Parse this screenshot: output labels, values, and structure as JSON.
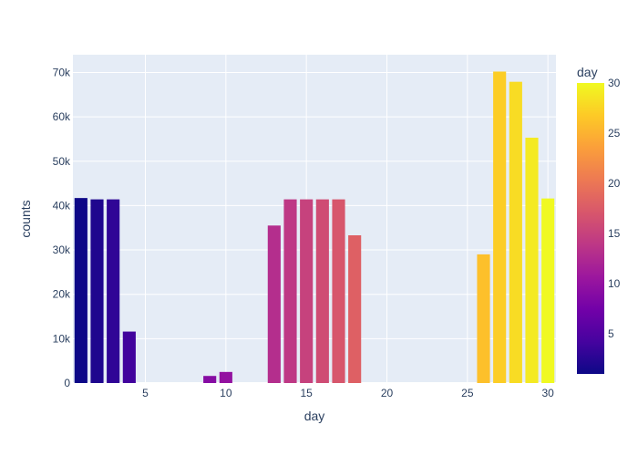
{
  "chart_data": {
    "type": "bar",
    "xlabel": "day",
    "ylabel": "counts",
    "xlim": [
      0.5,
      30.5
    ],
    "ylim": [
      0,
      74000
    ],
    "x_ticks": [
      5,
      10,
      15,
      20,
      25,
      30
    ],
    "y_ticks": [
      0,
      10000,
      20000,
      30000,
      40000,
      50000,
      60000,
      70000
    ],
    "y_tick_labels": [
      "0",
      "10k",
      "20k",
      "30k",
      "40k",
      "50k",
      "60k",
      "70k"
    ],
    "x": [
      1,
      2,
      3,
      4,
      9,
      10,
      13,
      14,
      15,
      16,
      17,
      18,
      26,
      27,
      28,
      29,
      30
    ],
    "values": [
      41700,
      41400,
      41400,
      11600,
      1600,
      2500,
      35500,
      41400,
      41400,
      41400,
      41400,
      33300,
      29000,
      70200,
      67900,
      55300,
      41600
    ],
    "color_by": "day",
    "colorscale": "plasma",
    "colorbar": {
      "title": "day",
      "range": [
        1,
        30
      ],
      "ticks": [
        5,
        10,
        15,
        20,
        25,
        30
      ]
    },
    "grid": true,
    "plot_background": "#e5ecf6"
  }
}
